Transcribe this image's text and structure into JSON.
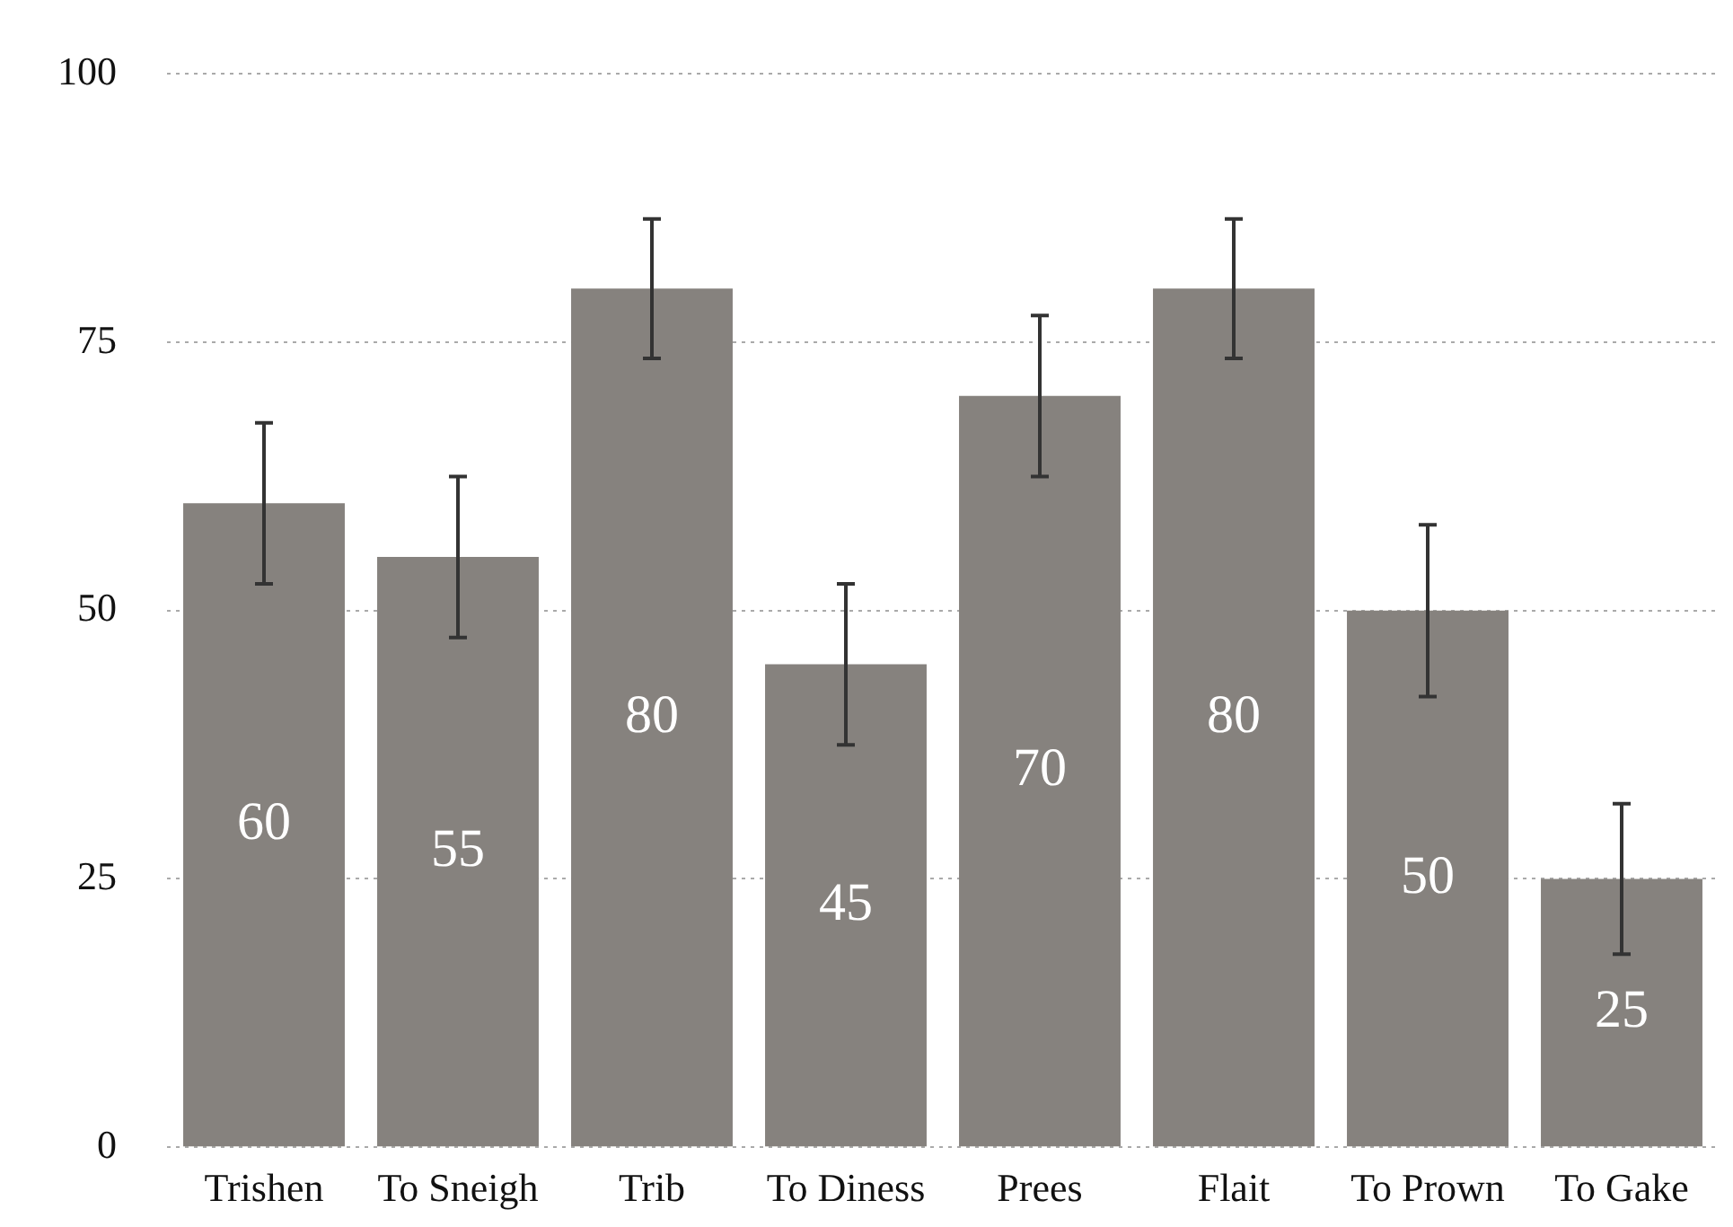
{
  "chart_data": {
    "type": "bar",
    "categories": [
      "Trishen",
      "To Sneigh",
      "Trib",
      "To Diness",
      "Prees",
      "Flait",
      "To Prown",
      "To Gake"
    ],
    "values": [
      60,
      55,
      80,
      45,
      70,
      80,
      50,
      25
    ],
    "errors": [
      7.5,
      7.5,
      6.5,
      7.5,
      7.5,
      6.5,
      8,
      7
    ],
    "color": "#86827e",
    "ylim": [
      0,
      100
    ],
    "yticks": [
      0,
      25,
      50,
      75,
      100
    ],
    "grid": "y",
    "data_labels": true
  }
}
